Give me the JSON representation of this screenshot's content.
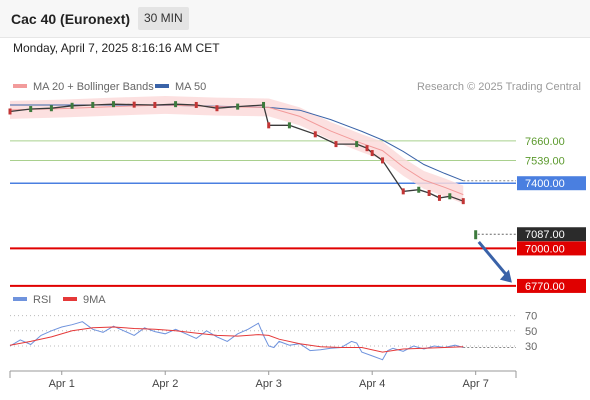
{
  "header": {
    "title": "Cac 40 (Euronext)",
    "timeframe": "30 MIN"
  },
  "date_line": "Monday, April 7, 2025 8:16:16 AM CET",
  "colors": {
    "ma20": "#f29b9b",
    "ma50": "#3a63a8",
    "band": "#fbdada",
    "support": "#e00000",
    "pivot": "#4a7fe0",
    "resistance": "#a9d08e",
    "price_up": "#3d7a3d",
    "price_down": "#c23535",
    "rsi": "#6f93dd",
    "rsi_ma": "#e53939",
    "arrow": "#3a62a8"
  },
  "chart_data": [
    {
      "type": "line",
      "legend": [
        {
          "name": "MA 20 + Bollinger Bands",
          "color": "#f29b9b"
        },
        {
          "name": "MA 50",
          "color": "#3a63a8"
        }
      ],
      "credit": "Research © 2025 Trading Central",
      "x_ticks": [
        "Apr 1",
        "Apr 2",
        "Apr 3",
        "Apr 4",
        "Apr 7"
      ],
      "x_tick_pos": [
        1,
        2,
        3,
        4,
        5
      ],
      "x_range": [
        0.5,
        5.38
      ],
      "y_range": [
        6745,
        7935
      ],
      "levels": [
        {
          "label": "7660.00",
          "value": 7660,
          "kind": "resistance"
        },
        {
          "label": "7539.00",
          "value": 7539,
          "kind": "resistance"
        },
        {
          "label": "7400.00",
          "value": 7400,
          "kind": "pivot"
        },
        {
          "label": "7087.00",
          "value": 7087,
          "kind": "last"
        },
        {
          "label": "7000.00",
          "value": 7000,
          "kind": "support"
        },
        {
          "label": "6770.00",
          "value": 6770,
          "kind": "support"
        }
      ],
      "price": {
        "x": [
          0.5,
          0.7,
          0.9,
          1.1,
          1.3,
          1.5,
          1.7,
          1.9,
          2.1,
          2.3,
          2.5,
          2.7,
          2.95,
          3.0,
          3.2,
          3.45,
          3.65,
          3.85,
          3.95,
          4.0,
          4.1,
          4.3,
          4.45,
          4.55,
          4.65,
          4.75,
          4.88
        ],
        "y": [
          7840,
          7855,
          7860,
          7875,
          7880,
          7885,
          7882,
          7880,
          7885,
          7880,
          7860,
          7870,
          7880,
          7755,
          7755,
          7700,
          7640,
          7640,
          7615,
          7585,
          7540,
          7350,
          7360,
          7340,
          7310,
          7320,
          7290
        ]
      },
      "last_price_point": {
        "x": 5.0,
        "y": 7087
      },
      "ma20": {
        "x": [
          0.5,
          1.0,
          1.5,
          2.0,
          2.5,
          3.0,
          3.3,
          3.6,
          3.9,
          4.1,
          4.3,
          4.5,
          4.7,
          4.88
        ],
        "y": [
          7850,
          7858,
          7870,
          7880,
          7870,
          7865,
          7810,
          7720,
          7645,
          7600,
          7500,
          7420,
          7375,
          7330
        ]
      },
      "ma50": {
        "x": [
          0.5,
          1.0,
          1.5,
          2.0,
          2.5,
          3.0,
          3.3,
          3.6,
          3.9,
          4.1,
          4.3,
          4.5,
          4.7,
          4.88
        ],
        "y": [
          7880,
          7880,
          7880,
          7878,
          7872,
          7865,
          7848,
          7790,
          7718,
          7665,
          7595,
          7515,
          7460,
          7415
        ]
      },
      "forecast": {
        "from": {
          "x": 5.03,
          "y": 7040
        },
        "to": {
          "x": 5.35,
          "y": 6790
        }
      }
    },
    {
      "type": "line",
      "legend": [
        {
          "name": "RSI",
          "color": "#6f93dd"
        },
        {
          "name": "9MA",
          "color": "#e53939"
        }
      ],
      "y_ticks": [
        "70",
        "50",
        "30"
      ],
      "y_tick_values": [
        70,
        50,
        30
      ],
      "y_range": [
        5,
        80
      ],
      "x_range": [
        0.5,
        5.38
      ],
      "rsi": {
        "x": [
          0.5,
          0.6,
          0.7,
          0.8,
          0.9,
          1.0,
          1.1,
          1.2,
          1.3,
          1.4,
          1.5,
          1.6,
          1.7,
          1.8,
          1.9,
          2.0,
          2.1,
          2.2,
          2.3,
          2.4,
          2.5,
          2.6,
          2.7,
          2.8,
          2.9,
          2.95,
          3.0,
          3.05,
          3.1,
          3.2,
          3.3,
          3.4,
          3.5,
          3.6,
          3.7,
          3.8,
          3.85,
          3.9,
          4.0,
          4.1,
          4.15,
          4.2,
          4.3,
          4.4,
          4.5,
          4.6,
          4.7,
          4.8,
          4.88
        ],
        "y": [
          30,
          38,
          32,
          44,
          50,
          55,
          58,
          62,
          52,
          48,
          56,
          50,
          44,
          54,
          49,
          46,
          52,
          46,
          40,
          50,
          42,
          36,
          46,
          52,
          60,
          44,
          30,
          28,
          36,
          31,
          33,
          24,
          25,
          27,
          28,
          36,
          34,
          22,
          17,
          12,
          24,
          27,
          23,
          30,
          26,
          30,
          28,
          31,
          28
        ]
      },
      "rsi_ma": {
        "x": [
          0.5,
          0.7,
          0.9,
          1.1,
          1.3,
          1.5,
          1.7,
          1.9,
          2.1,
          2.3,
          2.5,
          2.7,
          2.9,
          3.0,
          3.1,
          3.3,
          3.5,
          3.7,
          3.9,
          4.1,
          4.3,
          4.5,
          4.7,
          4.88
        ],
        "y": [
          31,
          36,
          42,
          50,
          54,
          55,
          53,
          52,
          50,
          47,
          44,
          43,
          45,
          44,
          39,
          33,
          29,
          28,
          28,
          22,
          26,
          27,
          28,
          29
        ]
      }
    }
  ]
}
